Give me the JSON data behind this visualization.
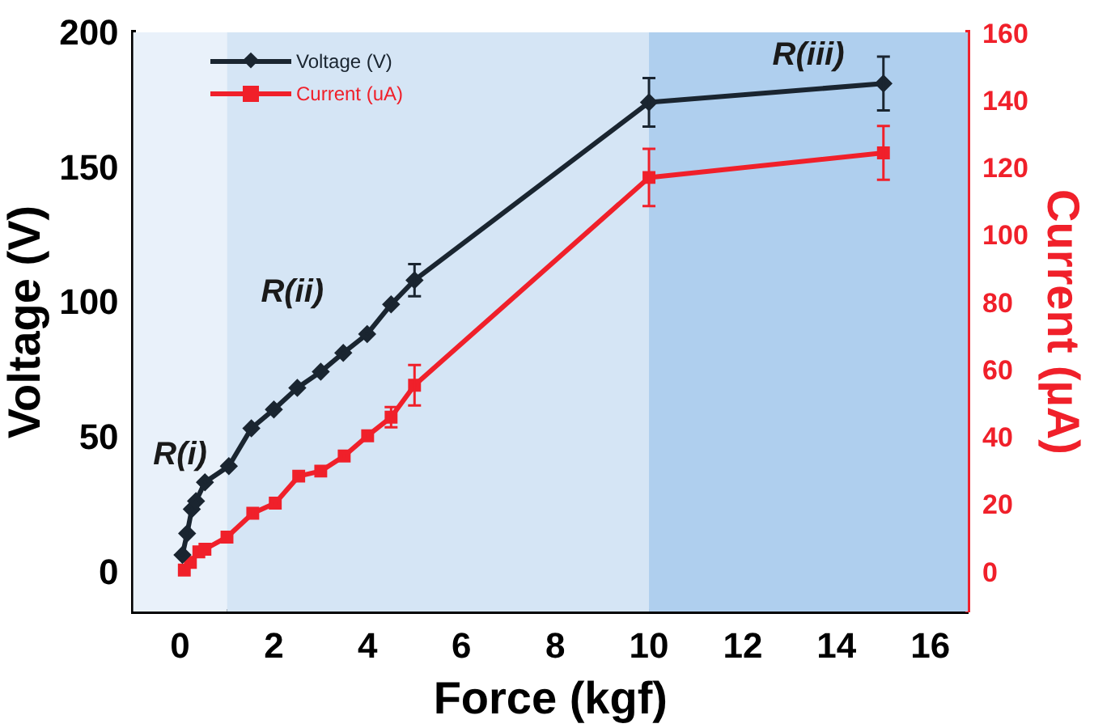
{
  "chart_data": {
    "type": "line",
    "xlabel": "Force (kgf)",
    "ylabel": "Voltage (V)",
    "y2label": "Current (µA)",
    "xlim": [
      -1,
      16.8
    ],
    "xticks": [
      0,
      2,
      4,
      6,
      8,
      10,
      12,
      14,
      16
    ],
    "ylim": [
      -14,
      201
    ],
    "yticks": [
      0,
      50,
      100,
      150,
      200
    ],
    "y2lim": [
      -11.2,
      160.8
    ],
    "y2ticks": [
      0,
      20,
      40,
      60,
      80,
      100,
      120,
      140,
      160
    ],
    "legend": "top left",
    "grid": false,
    "bands": [
      {
        "axis": "x",
        "from": -1,
        "to": 1,
        "label": "R(i)",
        "color": "#e9f1fa"
      },
      {
        "axis": "x",
        "from": 1,
        "to": 10,
        "label": "R(ii)",
        "color": "#d5e5f5"
      },
      {
        "axis": "x",
        "from": 10,
        "to": 16.8,
        "label": "R(iii)",
        "color": "#afcfee"
      }
    ],
    "series": [
      {
        "name": "Voltage (V)",
        "color": "#1a2530",
        "marker": "diamond",
        "x": [
          0.05,
          0.15,
          0.25,
          0.34,
          0.53,
          1.04,
          1.52,
          2.0,
          2.5,
          3.0,
          3.48,
          3.99,
          4.5,
          5.0,
          10,
          15
        ],
        "values": [
          7,
          15,
          24,
          27,
          34,
          40,
          54,
          61,
          69,
          75,
          82,
          89,
          100,
          109,
          175,
          182
        ],
        "errors": [
          null,
          null,
          null,
          null,
          null,
          null,
          null,
          null,
          null,
          null,
          null,
          null,
          null,
          6,
          9,
          10
        ]
      },
      {
        "name": "Current (uA)",
        "color": "#f0202a",
        "marker": "square",
        "axis": "y2",
        "x": [
          0.09,
          0.22,
          0.4,
          0.53,
          1.0,
          1.55,
          2.03,
          2.53,
          3.0,
          3.5,
          4.0,
          4.5,
          5.0,
          10,
          15
        ],
        "values": [
          1.1,
          3.4,
          6.5,
          7.3,
          10.9,
          18,
          21,
          29,
          30.5,
          35,
          41,
          46.5,
          56,
          117.7,
          125
        ],
        "errors": [
          null,
          null,
          null,
          null,
          null,
          null,
          null,
          null,
          null,
          null,
          null,
          3,
          6,
          8.5,
          8
        ]
      }
    ]
  }
}
